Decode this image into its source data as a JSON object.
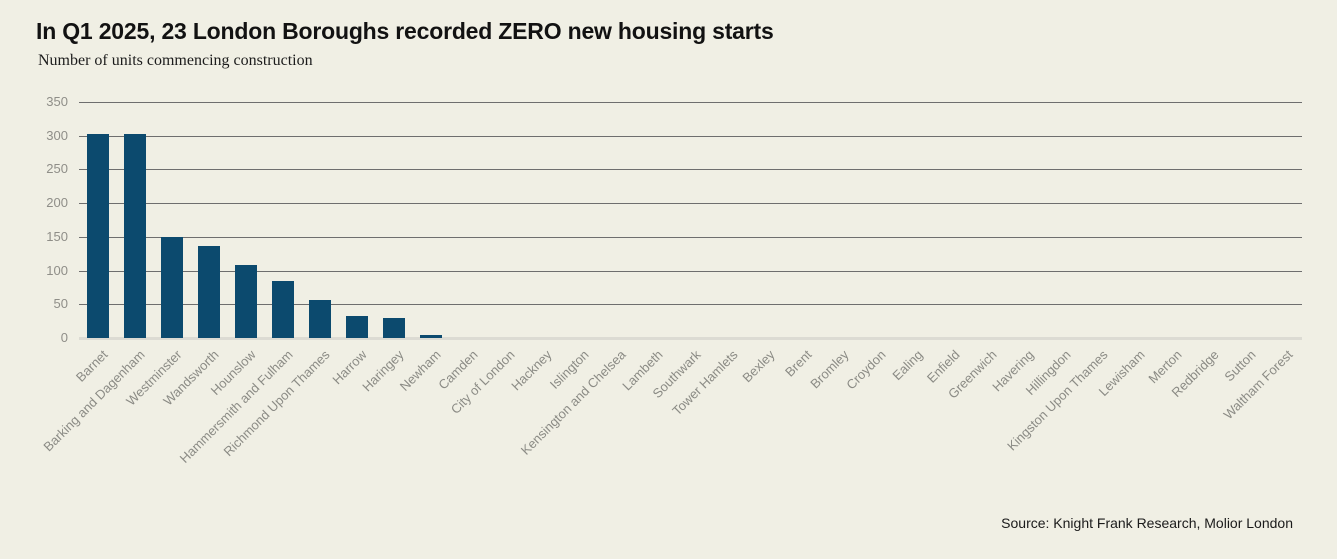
{
  "header": {
    "title": "In Q1 2025, 23 London Boroughs recorded ZERO new housing starts",
    "subtitle": "Number of units commencing construction"
  },
  "footer": {
    "source": "Source: Knight Frank Research, Molior London"
  },
  "colors": {
    "background": "#f0efe4",
    "bar": "#0c4a6e",
    "gridline": "#6e6e6e",
    "baseline": "#dcdbd3",
    "axis_text": "#8f8e88",
    "title_text": "#121212",
    "source_text": "#1b1b1b"
  },
  "chart_data": {
    "type": "bar",
    "title": "In Q1 2025, 23 London Boroughs recorded ZERO new housing starts",
    "subtitle": "Number of units commencing construction",
    "xlabel": "",
    "ylabel": "Number of units commencing construction",
    "ylim": [
      0,
      350
    ],
    "yticks": [
      0,
      50,
      100,
      150,
      200,
      250,
      300,
      350
    ],
    "grid": "horizontal",
    "legend": "none",
    "source": "Source: Knight Frank Research, Molior London",
    "categories": [
      "Barnet",
      "Barking and Dagenham",
      "Westminster",
      "Wandsworth",
      "Hounslow",
      "Hammersmith and Fulham",
      "Richmond Upon Thames",
      "Harrow",
      "Haringey",
      "Newham",
      "Camden",
      "City of London",
      "Hackney",
      "Islington",
      "Kensington and Chelsea",
      "Lambeth",
      "Southwark",
      "Tower Hamlets",
      "Bexley",
      "Brent",
      "Bromley",
      "Croydon",
      "Ealing",
      "Enfield",
      "Greenwich",
      "Havering",
      "Hillingdon",
      "Kingston Upon Thames",
      "Lewisham",
      "Merton",
      "Redbridge",
      "Sutton",
      "Waltham Forest"
    ],
    "values": [
      303,
      303,
      150,
      136,
      109,
      84,
      57,
      32,
      29,
      5,
      0,
      0,
      0,
      0,
      0,
      0,
      0,
      0,
      0,
      0,
      0,
      0,
      0,
      0,
      0,
      0,
      0,
      0,
      0,
      0,
      0,
      0,
      0
    ]
  }
}
